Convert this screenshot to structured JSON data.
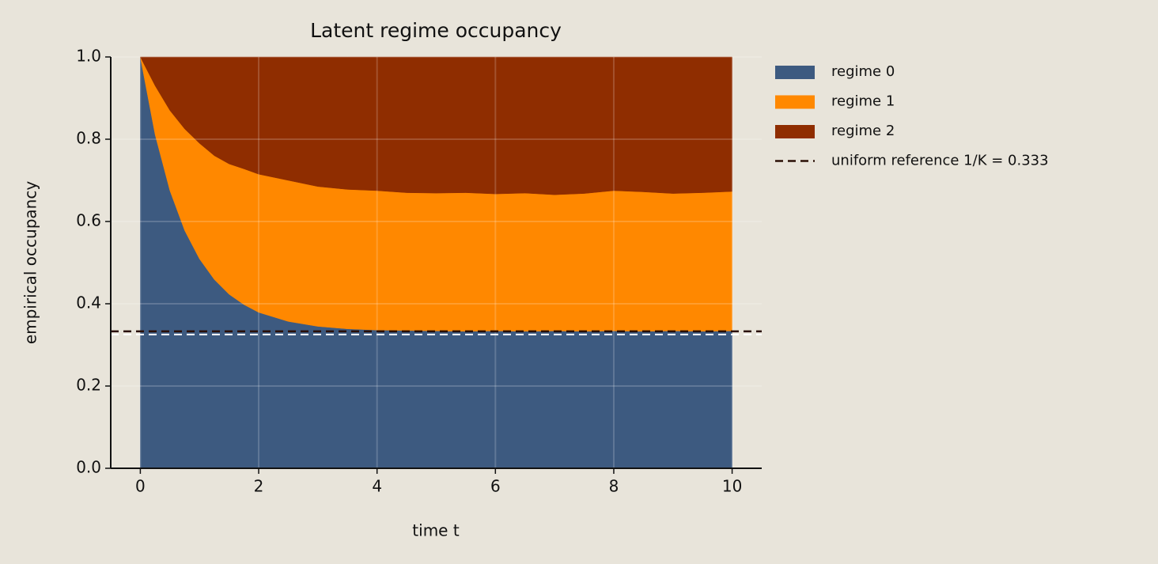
{
  "chart_data": {
    "type": "stacked_area",
    "title": "Latent regime occupancy",
    "xlabel": "time t",
    "ylabel": "empirical occupancy",
    "x": [
      0,
      0.25,
      0.5,
      0.75,
      1,
      1.25,
      1.5,
      1.75,
      2,
      2.5,
      3,
      3.5,
      4,
      4.5,
      5,
      5.5,
      6,
      6.5,
      7,
      7.5,
      8,
      8.5,
      9,
      9.5,
      10
    ],
    "series": [
      {
        "name": "regime 0",
        "color": "#3d5a80",
        "values": [
          1.0,
          0.811,
          0.675,
          0.578,
          0.509,
          0.459,
          0.423,
          0.398,
          0.379,
          0.357,
          0.345,
          0.339,
          0.336,
          0.335,
          0.334,
          0.333,
          0.334,
          0.333,
          0.334,
          0.333,
          0.334,
          0.333,
          0.334,
          0.333,
          0.334
        ]
      },
      {
        "name": "regime 1",
        "color": "#ff8800",
        "values": [
          0,
          0.119,
          0.195,
          0.247,
          0.281,
          0.301,
          0.317,
          0.33,
          0.336,
          0.343,
          0.34,
          0.339,
          0.339,
          0.335,
          0.335,
          0.337,
          0.333,
          0.336,
          0.331,
          0.335,
          0.341,
          0.339,
          0.334,
          0.337,
          0.339
        ]
      },
      {
        "name": "regime 2",
        "color": "#8f2d00",
        "values": [
          0,
          0.07,
          0.13,
          0.175,
          0.21,
          0.24,
          0.26,
          0.272,
          0.285,
          0.3,
          0.315,
          0.322,
          0.325,
          0.33,
          0.331,
          0.33,
          0.333,
          0.331,
          0.335,
          0.332,
          0.325,
          0.328,
          0.332,
          0.33,
          0.327
        ]
      }
    ],
    "reference": {
      "value": 0.333,
      "label": "uniform reference 1/K = 0.333",
      "color": "#2a0f05"
    },
    "xlim": [
      -0.5,
      10.5
    ],
    "xticks": [
      0,
      2,
      4,
      6,
      8,
      10
    ],
    "ylim": [
      0,
      1
    ],
    "yticks": [
      {
        "value": 0,
        "label": "0.0"
      },
      {
        "value": 0.2,
        "label": "0.2"
      },
      {
        "value": 0.4,
        "label": "0.4"
      },
      {
        "value": 0.6,
        "label": "0.6"
      },
      {
        "value": 0.8,
        "label": "0.8"
      },
      {
        "value": 1,
        "label": "1.0"
      }
    ],
    "grid": true,
    "legend": "outside-right"
  }
}
